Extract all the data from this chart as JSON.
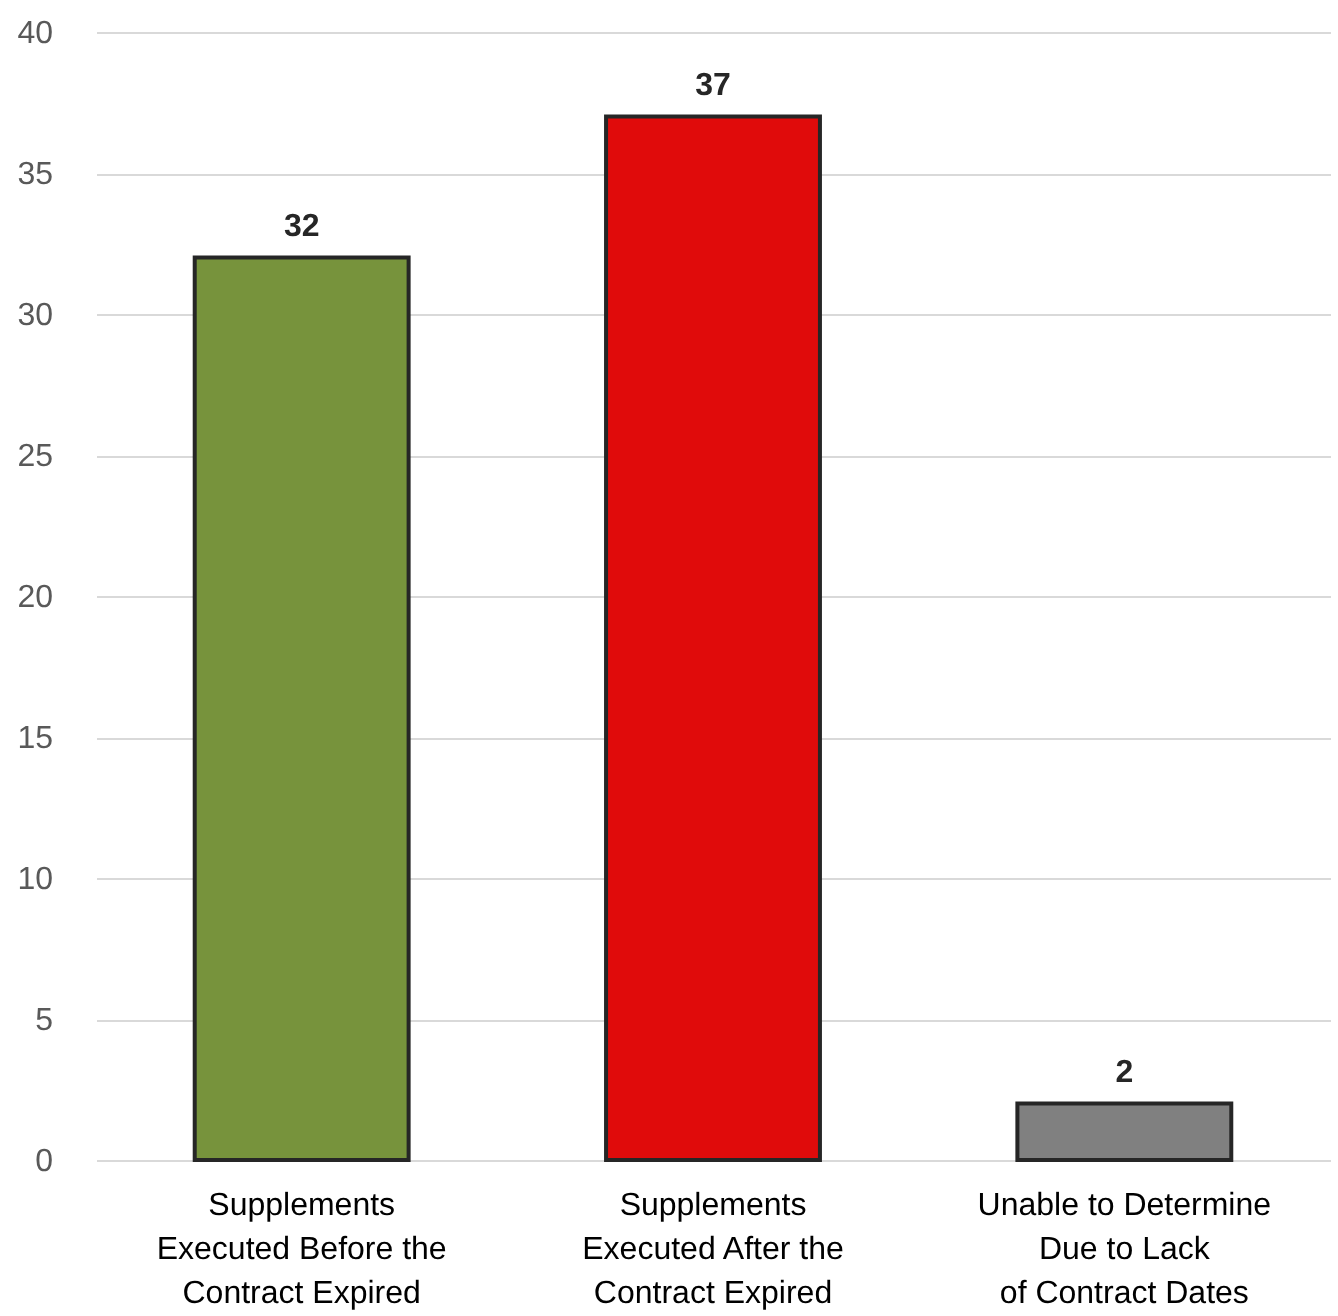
{
  "chart_data": {
    "type": "bar",
    "categories": [
      "Supplements Executed Before the Contract Expired",
      "Supplements Executed After the Contract Expired",
      "Unable to Determine Due to Lack of Contract Dates"
    ],
    "values": [
      32,
      37,
      2
    ],
    "colors": [
      "#77933c",
      "#e00b0b",
      "#808080"
    ],
    "ylim": [
      0,
      40
    ],
    "yticks": [
      0,
      5,
      10,
      15,
      20,
      25,
      30,
      35,
      40
    ],
    "grid": "y",
    "data_labels": true
  }
}
